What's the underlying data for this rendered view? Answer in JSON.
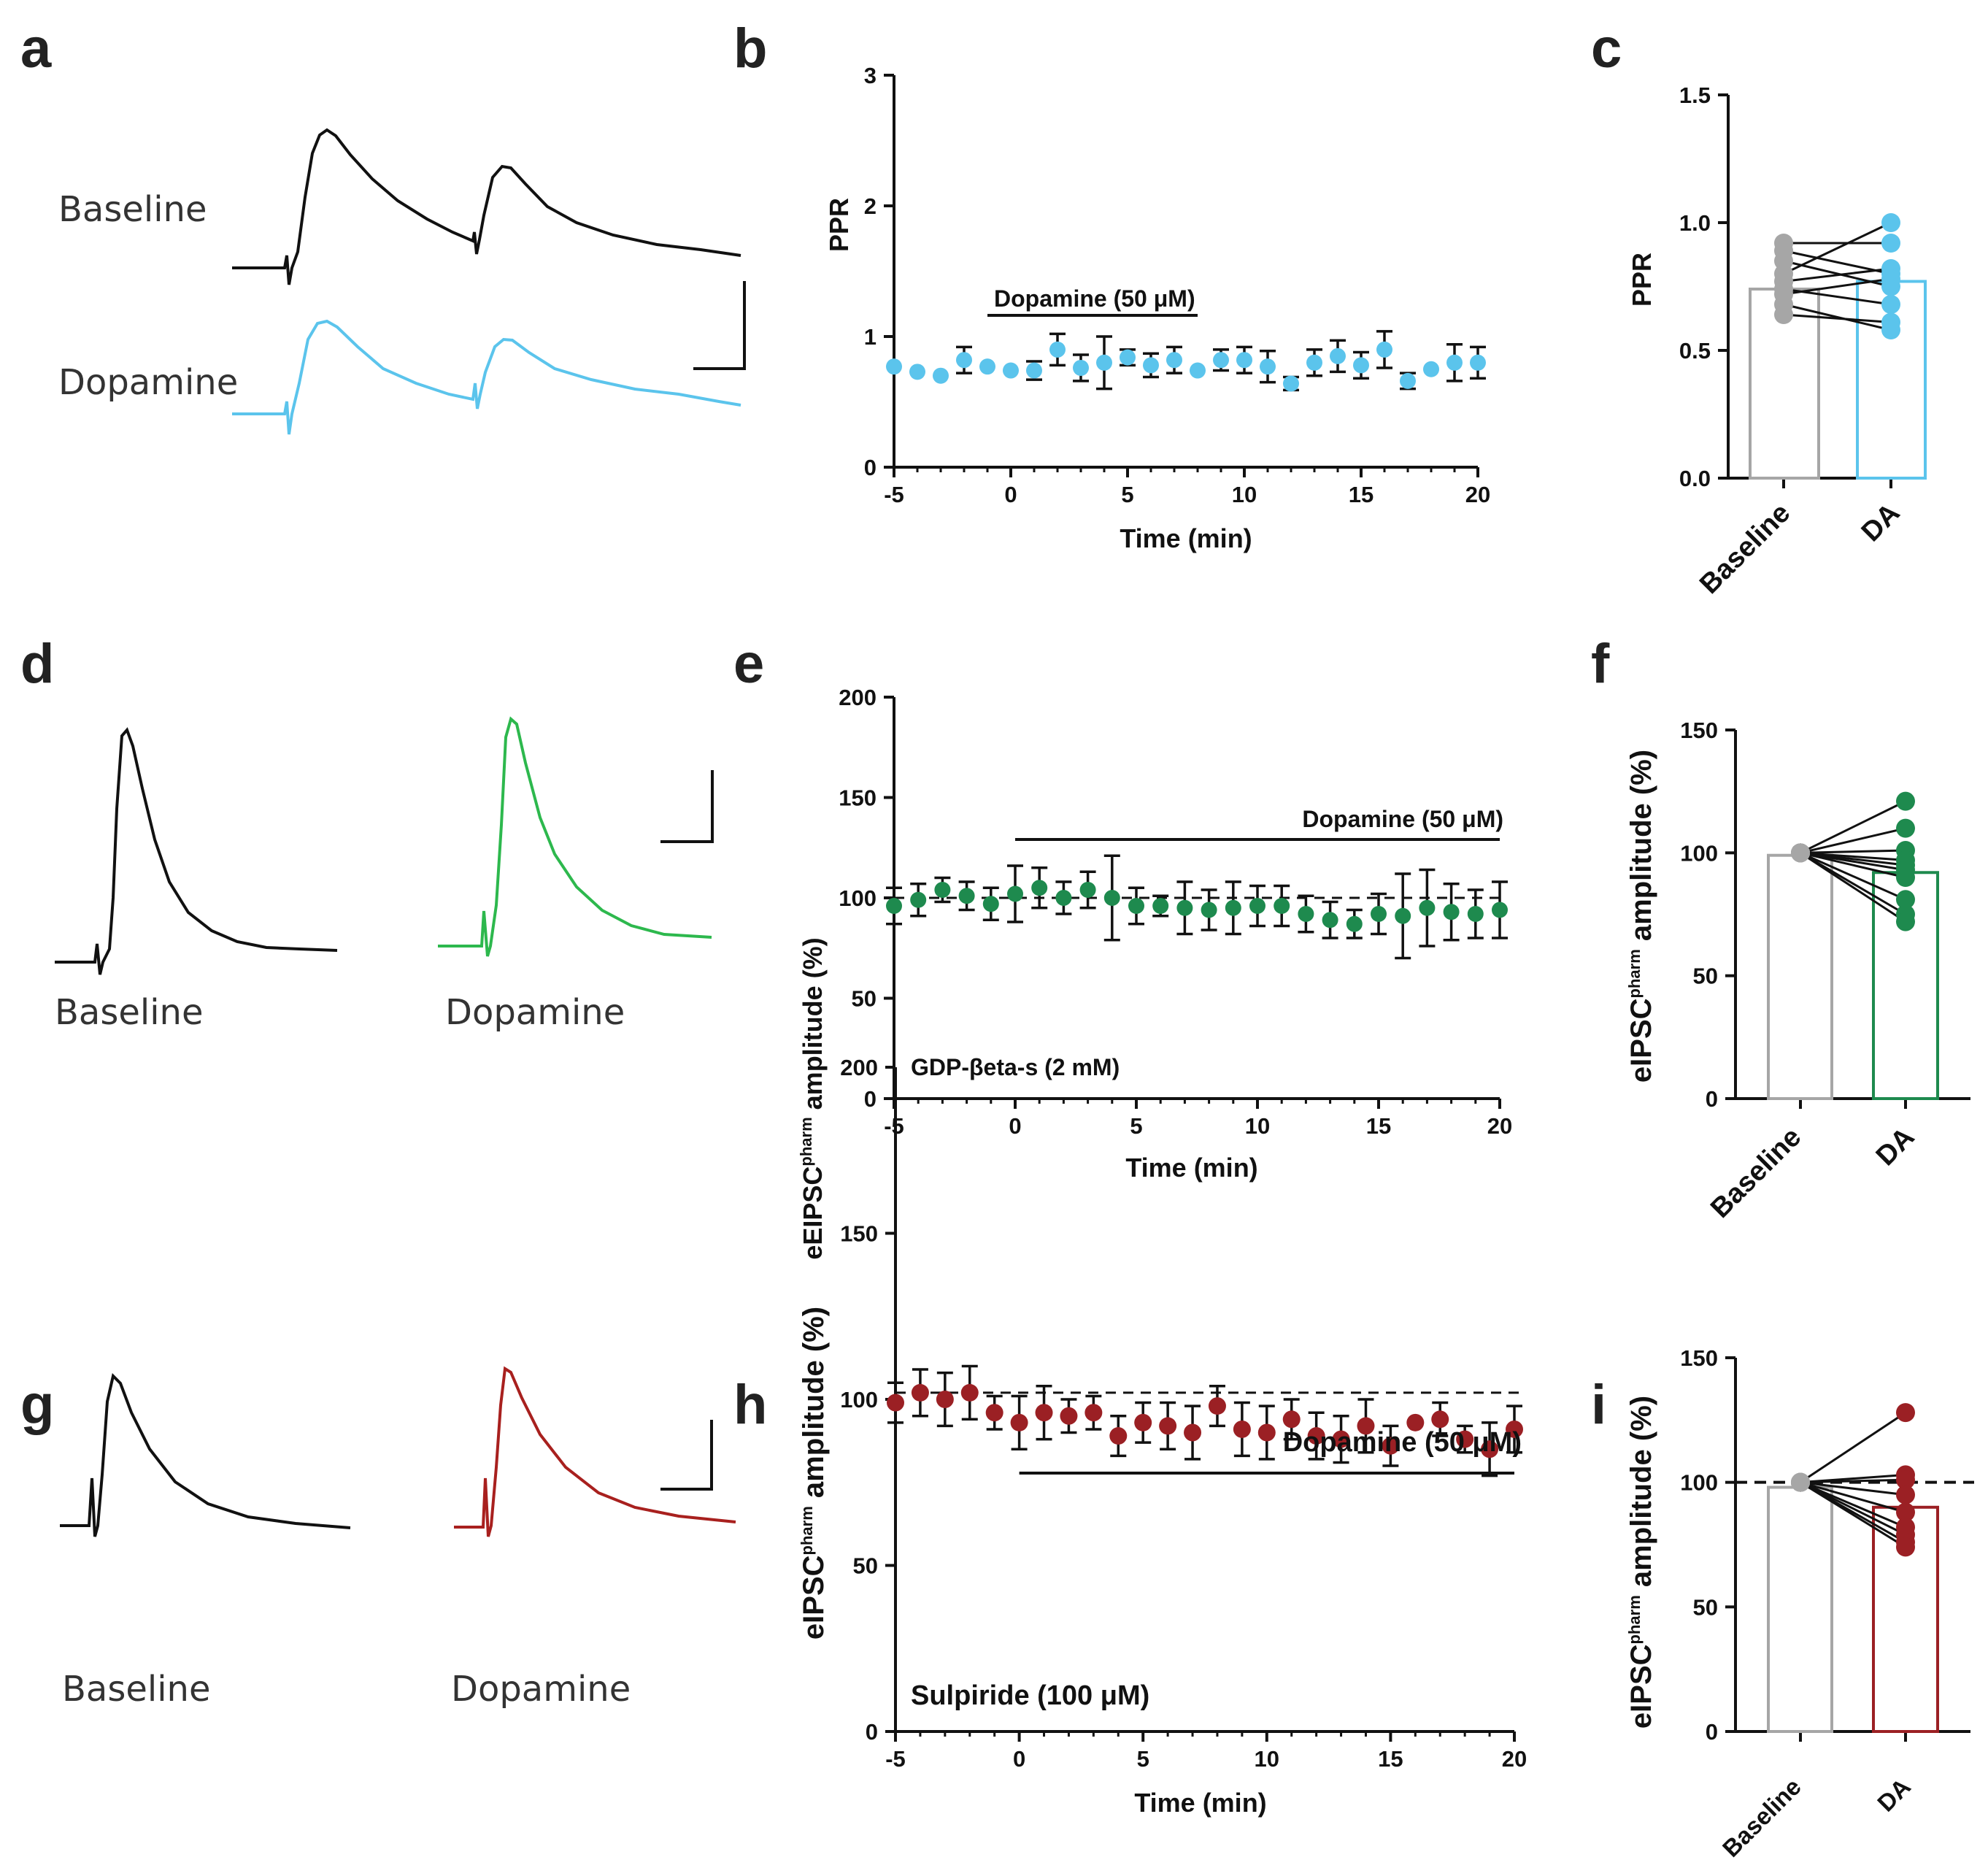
{
  "colors": {
    "ink": "#111111",
    "baseline_grey": "#a6a6a6",
    "cyan": "#5bc4ec",
    "green": "#1e8a4e",
    "green_trace": "#2db84d",
    "red": "#9b2024",
    "red_trace": "#a8201e"
  },
  "panel_labels": {
    "a": "a",
    "b": "b",
    "c": "c",
    "d": "d",
    "e": "e",
    "f": "f",
    "g": "g",
    "h": "h",
    "i": "i"
  },
  "traces": {
    "a": {
      "top": "Baseline",
      "bottom": "Dopamine"
    },
    "d": {
      "left": "Baseline",
      "right": "Dopamine"
    },
    "g": {
      "left": "Baseline",
      "right": "Dopamine"
    }
  },
  "chart_data": [
    {
      "id": "b",
      "type": "scatter",
      "ylabel": "PPR",
      "xlabel": "Time (min)",
      "xlim": [
        -5,
        20
      ],
      "ylim": [
        0,
        3
      ],
      "xticks": [
        "-5",
        "0",
        "5",
        "10",
        "15",
        "20"
      ],
      "yticks": [
        "0",
        "1",
        "2",
        "3"
      ],
      "annotation": "Dopamine (50 μM)",
      "drug_bar": [
        -1,
        8
      ],
      "series": [
        {
          "name": "PPR",
          "color": "cyan",
          "x": [
            -5,
            -4,
            -3,
            -2,
            -1,
            0,
            1,
            2,
            3,
            4,
            5,
            6,
            7,
            8,
            9,
            10,
            11,
            12,
            13,
            14,
            15,
            16,
            17,
            18,
            19,
            20
          ],
          "y": [
            0.77,
            0.73,
            0.7,
            0.82,
            0.77,
            0.74,
            0.74,
            0.9,
            0.76,
            0.8,
            0.84,
            0.78,
            0.82,
            0.74,
            0.82,
            0.82,
            0.77,
            0.64,
            0.8,
            0.85,
            0.78,
            0.9,
            0.66,
            0.75,
            0.8,
            0.8
          ],
          "err": [
            0,
            0,
            0,
            0.1,
            0,
            0,
            0.07,
            0.12,
            0.1,
            0.2,
            0.06,
            0.09,
            0.1,
            0,
            0.08,
            0.1,
            0.12,
            0.05,
            0.1,
            0.12,
            0.1,
            0.14,
            0.06,
            0,
            0.14,
            0.12
          ]
        }
      ]
    },
    {
      "id": "c",
      "type": "bar",
      "ylabel": "PPR",
      "categories": [
        "Baseline",
        "DA"
      ],
      "ylim": [
        0,
        1.5
      ],
      "yticks": [
        "0.0",
        "0.5",
        "1.0",
        "1.5"
      ],
      "values": [
        0.74,
        0.77
      ],
      "paired": {
        "baseline": [
          0.92,
          0.89,
          0.85,
          0.8,
          0.77,
          0.74,
          0.72,
          0.68,
          0.64
        ],
        "da": [
          0.92,
          0.8,
          0.75,
          1.0,
          0.82,
          0.68,
          0.78,
          0.58,
          0.61
        ]
      }
    },
    {
      "id": "e",
      "type": "scatter",
      "ylabel": "eEIPSC",
      "ylabel_sup": "pharm",
      "ylabel_tail": " amplitude (%)",
      "xlabel": "Time (min)",
      "xlim": [
        -5,
        20
      ],
      "ylim": [
        0,
        200
      ],
      "xticks": [
        "-5",
        "0",
        "5",
        "10",
        "15",
        "20"
      ],
      "yticks": [
        "0",
        "50",
        "100",
        "150",
        "200"
      ],
      "annotation": "Dopamine (50 μM)",
      "drug_bar": [
        0,
        20
      ],
      "note": "GDP-βeta-s (2 mM)",
      "dashed": 100,
      "series": [
        {
          "name": "eEIPSC",
          "color": "green",
          "x": [
            -5,
            -4,
            -3,
            -2,
            -1,
            0,
            1,
            2,
            3,
            4,
            5,
            6,
            7,
            8,
            9,
            10,
            11,
            12,
            13,
            14,
            15,
            16,
            17,
            18,
            19,
            20
          ],
          "y": [
            96,
            99,
            104,
            101,
            97,
            102,
            105,
            100,
            104,
            100,
            96,
            96,
            95,
            94,
            95,
            96,
            96,
            92,
            89,
            87,
            92,
            91,
            95,
            93,
            92,
            94
          ],
          "err": [
            9,
            8,
            6,
            7,
            8,
            14,
            10,
            8,
            9,
            21,
            9,
            5,
            13,
            10,
            13,
            10,
            10,
            9,
            9,
            7,
            10,
            21,
            19,
            14,
            12,
            14
          ]
        }
      ]
    },
    {
      "id": "f",
      "type": "bar",
      "ylabel": "eIPSC",
      "ylabel_sup": "pharm",
      "ylabel_tail": " amplitude (%)",
      "categories": [
        "Baseline",
        "DA"
      ],
      "ylim": [
        0,
        150
      ],
      "yticks": [
        "0",
        "50",
        "100",
        "150"
      ],
      "values": [
        99,
        92
      ],
      "paired": {
        "baseline": [
          100,
          100,
          100,
          100,
          100,
          100,
          100,
          100,
          100,
          100
        ],
        "da": [
          121,
          110,
          101,
          97,
          95,
          93,
          90,
          81,
          75,
          72
        ]
      }
    },
    {
      "id": "h",
      "type": "scatter",
      "ylabel": "eIPSC",
      "ylabel_sup": "pharm",
      "ylabel_tail": " amplitude (%)",
      "xlabel": "Time (min)",
      "xlim": [
        -5,
        20
      ],
      "ylim": [
        0,
        200
      ],
      "xticks": [
        "-5",
        "0",
        "5",
        "10",
        "15",
        "20"
      ],
      "yticks": [
        "0",
        "50",
        "100",
        "150",
        "200"
      ],
      "annotation": "Dopamine (50 μM)",
      "drug_bar": [
        0,
        20
      ],
      "note": "Sulpiride (100 μM)",
      "dashed": 102,
      "series": [
        {
          "name": "eIPSC",
          "color": "red",
          "x": [
            -5,
            -4,
            -3,
            -2,
            -1,
            0,
            1,
            2,
            3,
            4,
            5,
            6,
            7,
            8,
            9,
            10,
            11,
            12,
            13,
            14,
            15,
            16,
            17,
            18,
            19,
            20
          ],
          "y": [
            99,
            102,
            100,
            102,
            96,
            93,
            96,
            95,
            96,
            89,
            93,
            92,
            90,
            98,
            91,
            90,
            94,
            89,
            88,
            92,
            86,
            93,
            94,
            88,
            85,
            91
          ],
          "err": [
            6,
            7,
            8,
            8,
            5,
            8,
            8,
            5,
            5,
            6,
            6,
            7,
            8,
            6,
            8,
            8,
            6,
            7,
            7,
            8,
            6,
            0,
            5,
            4,
            8,
            7
          ]
        }
      ]
    },
    {
      "id": "i",
      "type": "bar",
      "ylabel": "eIPSC",
      "ylabel_sup": "pharm",
      "ylabel_tail": " amplitude (%)",
      "categories": [
        "Baseline",
        "DA"
      ],
      "ylim": [
        0,
        150
      ],
      "yticks": [
        "0",
        "50",
        "100",
        "150"
      ],
      "values": [
        98,
        90
      ],
      "dashed": 100,
      "paired": {
        "baseline": [
          100,
          100,
          100,
          100,
          100,
          100,
          100,
          100,
          100
        ],
        "da": [
          128,
          103,
          101,
          95,
          88,
          82,
          79,
          76,
          74
        ]
      }
    }
  ]
}
